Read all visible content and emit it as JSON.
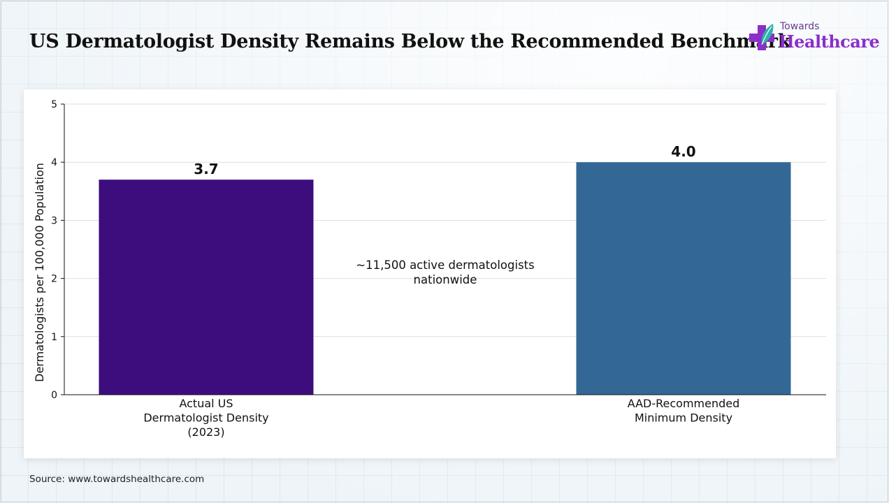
{
  "title": "US Dermatologist Density Remains Below the Recommended Benchmark",
  "logo": {
    "line1": "Towards",
    "line2": "Healthcare"
  },
  "source": "Source: www.towardshealthcare.com",
  "annotation": {
    "line1": "~11,500 active dermatologists",
    "line2": "nationwide"
  },
  "colors": {
    "bar_actual": "#3d0d7e",
    "bar_recommended": "#336896",
    "logo_purple": "#8b2fc9",
    "logo_teal": "#2bb3a8"
  },
  "chart_data": {
    "type": "bar",
    "title": "US Dermatologist Density Remains Below the Recommended Benchmark",
    "ylabel": "Dermatologists per 100,000 Population",
    "xlabel": "",
    "ylim": [
      0,
      5
    ],
    "yticks": [
      "0",
      "1",
      "2",
      "3",
      "4",
      "5"
    ],
    "grid": true,
    "categories": [
      [
        "Actual US",
        "Dermatologist Density",
        "(2023)"
      ],
      [
        "AAD-Recommended",
        "Minimum Density"
      ]
    ],
    "values": [
      3.7,
      4.0
    ],
    "value_labels": [
      "3.7",
      "4.0"
    ],
    "colors": [
      "#3d0d7e",
      "#336896"
    ]
  }
}
